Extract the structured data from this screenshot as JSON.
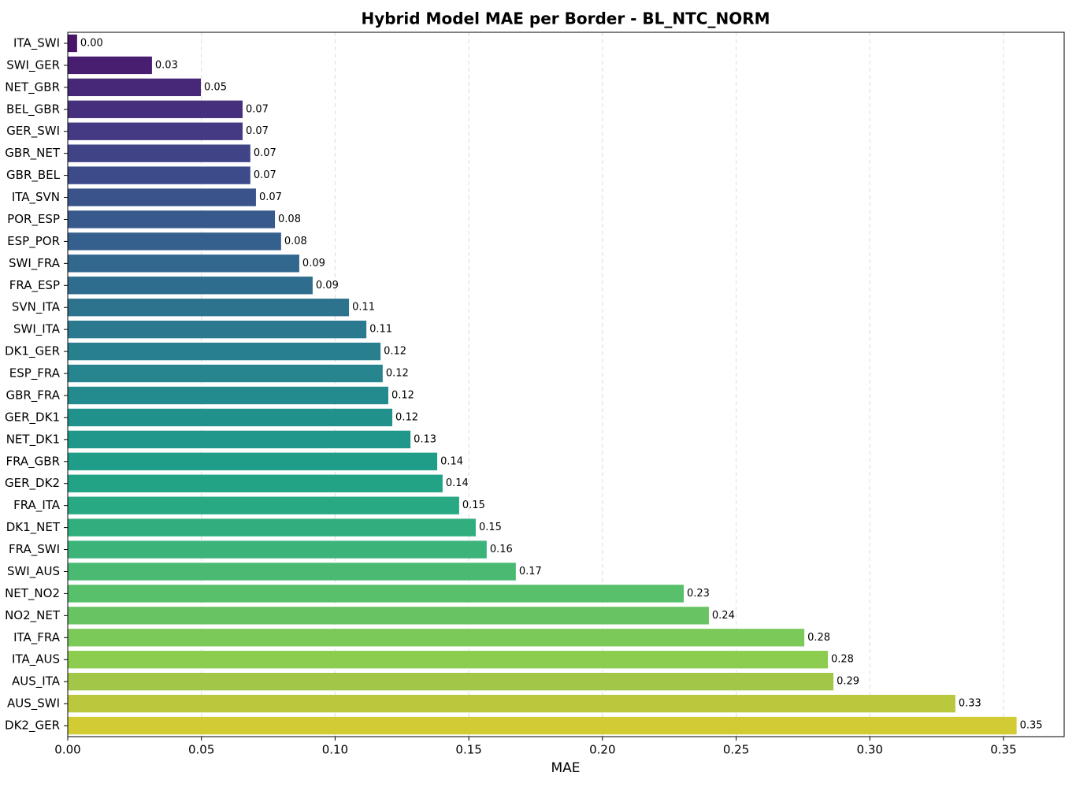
{
  "chart_data": {
    "type": "barh",
    "title": "Hybrid Model MAE per Border - BL_NTC_NORM",
    "xlabel": "MAE",
    "categories": [
      "ITA_SWI",
      "SWI_GER",
      "NET_GBR",
      "BEL_GBR",
      "GER_SWI",
      "GBR_NET",
      "GBR_BEL",
      "ITA_SVN",
      "POR_ESP",
      "ESP_POR",
      "SWI_FRA",
      "FRA_ESP",
      "SVN_ITA",
      "SWI_ITA",
      "DK1_GER",
      "ESP_FRA",
      "GBR_FRA",
      "GER_DK1",
      "NET_DK1",
      "FRA_GBR",
      "GER_DK2",
      "FRA_ITA",
      "DK1_NET",
      "FRA_SWI",
      "SWI_AUS",
      "NET_NO2",
      "NO2_NET",
      "ITA_FRA",
      "ITA_AUS",
      "AUS_ITA",
      "AUS_SWI",
      "DK2_GER"
    ],
    "values": [
      0.0035,
      0.0315,
      0.0498,
      0.0654,
      0.0654,
      0.0683,
      0.0683,
      0.0704,
      0.0775,
      0.0798,
      0.0866,
      0.0916,
      0.1052,
      0.1117,
      0.117,
      0.1178,
      0.1199,
      0.1214,
      0.1282,
      0.1382,
      0.1402,
      0.1464,
      0.1526,
      0.1567,
      0.1676,
      0.2304,
      0.2398,
      0.2755,
      0.2843,
      0.2864,
      0.332,
      0.3549
    ],
    "value_labels": [
      "0.00",
      "0.03",
      "0.05",
      "0.07",
      "0.07",
      "0.07",
      "0.07",
      "0.07",
      "0.08",
      "0.08",
      "0.09",
      "0.09",
      "0.11",
      "0.11",
      "0.12",
      "0.12",
      "0.12",
      "0.12",
      "0.13",
      "0.14",
      "0.14",
      "0.15",
      "0.15",
      "0.16",
      "0.17",
      "0.23",
      "0.24",
      "0.28",
      "0.28",
      "0.29",
      "0.33",
      "0.35"
    ],
    "colors": [
      "#48156a",
      "#481e70",
      "#472777",
      "#46307e",
      "#433a83",
      "#414387",
      "#3e4b8a",
      "#3b538b",
      "#38598c",
      "#35608d",
      "#32678e",
      "#2f6d8e",
      "#2d738e",
      "#2a798e",
      "#287f8e",
      "#26858e",
      "#238b8d",
      "#21918c",
      "#1f978b",
      "#1f9d89",
      "#22a386",
      "#28a983",
      "#31ae7e",
      "#3cb479",
      "#4aba72",
      "#58bf6b",
      "#68c462",
      "#7ac959",
      "#8ccd4f",
      "#a2c748",
      "#b9c83c",
      "#d2cb34"
    ],
    "xlim": [
      0,
      0.3727
    ],
    "xticks": [
      {
        "value": 0,
        "label": "0.00"
      },
      0.05,
      {
        "value": 0.1,
        "label": "0.10"
      },
      0.15,
      {
        "value": 0.2,
        "label": "0.20"
      },
      0.25,
      {
        "value": 0.3,
        "label": "0.30"
      },
      0.35
    ],
    "grid": true
  }
}
